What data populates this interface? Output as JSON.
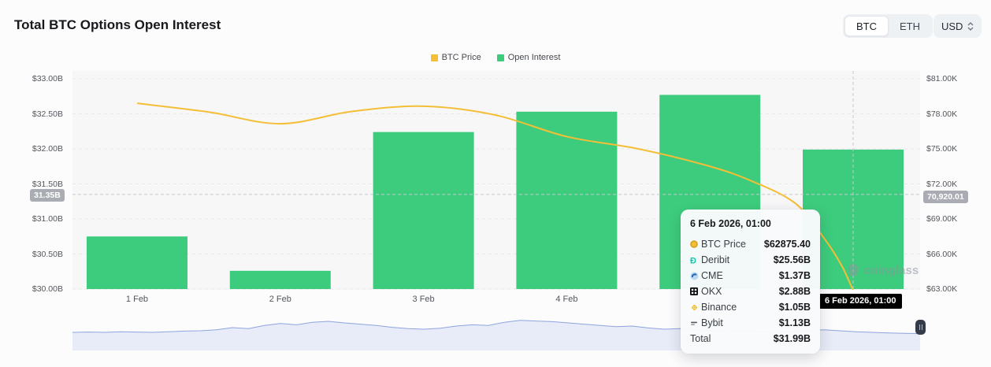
{
  "header": {
    "title": "Total BTC Options Open Interest",
    "coin_toggle": {
      "options": [
        "BTC",
        "ETH"
      ],
      "selected": "BTC"
    },
    "currency_select": {
      "value": "USD"
    }
  },
  "legend": [
    {
      "label": "BTC Price",
      "color": "#F4BE37"
    },
    {
      "label": "Open Interest",
      "color": "#3DCC7D"
    }
  ],
  "chart_data": {
    "type": "combo",
    "categories": [
      "1 Feb",
      "2 Feb",
      "3 Feb",
      "4 Feb",
      "5 Feb",
      "6 Feb"
    ],
    "x_axis_visible_labels": [
      "1 Feb",
      "2 Feb",
      "3 Feb",
      "4 Feb",
      "5 Feb"
    ],
    "series": [
      {
        "name": "Open Interest",
        "type": "bar",
        "y_axis": "left",
        "color": "#3DCC7D",
        "values_usd_billion": [
          30.75,
          30.26,
          32.24,
          32.53,
          32.77,
          31.99
        ]
      },
      {
        "name": "BTC Price",
        "type": "line",
        "y_axis": "right",
        "color": "#F4BE37",
        "points_day_price": [
          [
            0,
            78900
          ],
          [
            0.5,
            78150
          ],
          [
            1,
            77150
          ],
          [
            1.5,
            78200
          ],
          [
            2,
            78650
          ],
          [
            2.5,
            77900
          ],
          [
            3,
            76050
          ],
          [
            3.5,
            75000
          ],
          [
            4,
            73500
          ],
          [
            4.3,
            72200
          ],
          [
            4.6,
            70300
          ],
          [
            4.8,
            67300
          ],
          [
            4.92,
            65000
          ],
          [
            5,
            62875.4
          ]
        ]
      }
    ],
    "left_axis": {
      "tick_labels": [
        "$33.00B",
        "$32.50B",
        "$32.00B",
        "$31.50B",
        "$31.00B",
        "$30.50B",
        "$30.00B"
      ],
      "tick_values": [
        33,
        32.5,
        32,
        31.5,
        31,
        30.5,
        30
      ],
      "min": 30,
      "max": 33,
      "unit": "USD billions"
    },
    "right_axis": {
      "tick_labels": [
        "$81.00K",
        "$78.00K",
        "$75.00K",
        "$72.00K",
        "$69.00K",
        "$66.00K",
        "$63.00K"
      ],
      "tick_values": [
        81000,
        78000,
        75000,
        72000,
        69000,
        66000,
        63000
      ],
      "min": 63000,
      "max": 81000,
      "unit": "USD"
    },
    "grid": "horizontal-dashed",
    "legend_position": "top-center",
    "crosshair": {
      "x_date_label": "6 Feb 2026, 01:00",
      "left_value_label": "31.35B",
      "right_value_label": "70,920.01",
      "left_value": 31.35,
      "right_value": 70920.01,
      "day_index": 5
    }
  },
  "tooltip": {
    "title": "6 Feb 2026, 01:00",
    "rows": [
      {
        "icon": "btc",
        "label": "BTC Price",
        "value": "$62875.40"
      },
      {
        "icon": "deribit",
        "label": "Deribit",
        "value": "$25.56B"
      },
      {
        "icon": "cme",
        "label": "CME",
        "value": "$1.37B"
      },
      {
        "icon": "okx",
        "label": "OKX",
        "value": "$2.88B"
      },
      {
        "icon": "binance",
        "label": "Binance",
        "value": "$1.05B"
      },
      {
        "icon": "bybit",
        "label": "Bybit",
        "value": "$1.13B"
      },
      {
        "icon": "none",
        "label": "Total",
        "value": "$31.99B"
      }
    ]
  },
  "watermark": {
    "text": "coinglass"
  },
  "navigator": {
    "line_color": "#8EA4DD",
    "fill_color": "#E8ECF8",
    "values": [
      0.5,
      0.51,
      0.5,
      0.52,
      0.51,
      0.5,
      0.52,
      0.54,
      0.55,
      0.58,
      0.65,
      0.62,
      0.72,
      0.78,
      0.74,
      0.82,
      0.85,
      0.8,
      0.76,
      0.72,
      0.66,
      0.62,
      0.6,
      0.63,
      0.7,
      0.74,
      0.72,
      0.82,
      0.88,
      0.86,
      0.84,
      0.8,
      0.76,
      0.72,
      0.68,
      0.7,
      0.64,
      0.6,
      0.62,
      0.58,
      0.55,
      0.53,
      0.55,
      0.52,
      0.5,
      0.52,
      0.56,
      0.58,
      0.55,
      0.52,
      0.5,
      0.48,
      0.47,
      0.46
    ]
  },
  "colors": {
    "bar": "#3DCC7D",
    "line": "#F4BE37",
    "plot_bg": "#f7f7f8",
    "gridline": "#e7e8ea",
    "crosshair": "#c6c9ce"
  }
}
